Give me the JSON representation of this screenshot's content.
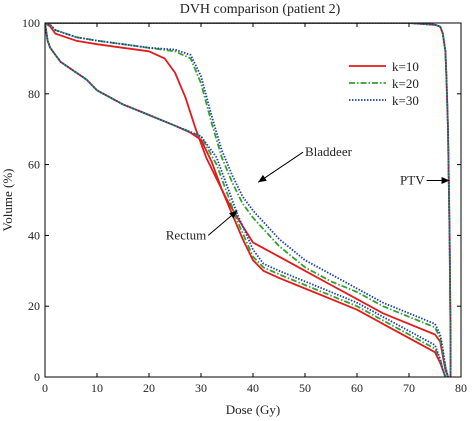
{
  "chart_data": {
    "type": "line",
    "title": "DVH comparison (patient 2)",
    "xlabel": "Dose (Gy)",
    "ylabel": "Volume (%)",
    "xlim": [
      0,
      80
    ],
    "ylim": [
      0,
      100
    ],
    "xticks": [
      0,
      10,
      20,
      30,
      40,
      50,
      60,
      70,
      80
    ],
    "yticks": [
      0,
      20,
      40,
      60,
      80,
      100
    ],
    "grid": false,
    "legend_position": "top-right",
    "series": [
      {
        "name": "k=10",
        "color": "#e31a1c",
        "dash": "solid",
        "curves": [
          {
            "x": [
              0,
              1,
              2,
              4,
              6,
              8,
              10,
              15,
              20,
              23,
              25,
              27,
              29,
              31,
              33,
              35,
              37,
              40,
              45,
              50,
              55,
              60,
              65,
              70,
              75,
              76,
              76.5,
              77,
              77.5
            ],
            "y": [
              100,
              99,
              97,
              96,
              95,
              94.5,
              94,
              93,
              92,
              90,
              86,
              79,
              70,
              62,
              56,
              50,
              45,
              38,
              34,
              30,
              26,
              22,
              18,
              15,
              12,
              10,
              6,
              2,
              0
            ]
          },
          {
            "x": [
              0,
              0.5,
              1,
              2,
              3,
              5,
              8,
              10,
              15,
              20,
              25,
              28,
              30,
              32,
              34,
              36,
              38,
              40,
              42,
              45,
              50,
              55,
              60,
              65,
              70,
              75,
              76,
              76.5,
              77
            ],
            "y": [
              100,
              95,
              93,
              91,
              89,
              87,
              84,
              81,
              77,
              74,
              71,
              69,
              67,
              61,
              53,
              46,
              39,
              33,
              30,
              28,
              25,
              22,
              19,
              15,
              11,
              7,
              4,
              2,
              0
            ]
          },
          {
            "x": [
              0,
              30,
              60,
              70,
              75,
              76,
              76.5,
              77,
              77.2,
              77.5,
              77.8,
              78,
              78
            ],
            "y": [
              100,
              100,
              100,
              100,
              99.5,
              99,
              97,
              92,
              85,
              70,
              40,
              10,
              0
            ]
          }
        ]
      },
      {
        "name": "k=20",
        "color": "#33a02c",
        "dash": "dashdot",
        "curves": [
          {
            "x": [
              0,
              1,
              2,
              4,
              6,
              8,
              10,
              15,
              20,
              25,
              28,
              30,
              32,
              34,
              36,
              38,
              40,
              45,
              50,
              55,
              60,
              65,
              70,
              75,
              76,
              76.5,
              77,
              77.5
            ],
            "y": [
              100,
              99.5,
              98,
              97,
              96,
              95.5,
              95,
              94,
              93,
              92,
              90,
              83,
              72,
              62,
              55,
              49,
              45,
              37,
              31,
              27,
              24,
              20,
              17,
              14,
              11,
              7,
              3,
              0
            ]
          },
          {
            "x": [
              0,
              0.5,
              1,
              2,
              3,
              5,
              8,
              10,
              15,
              20,
              25,
              30,
              33,
              35,
              37,
              40,
              42,
              45,
              50,
              55,
              60,
              65,
              70,
              75,
              76,
              76.5,
              77
            ],
            "y": [
              100,
              95,
              93,
              91,
              89,
              87,
              84,
              81,
              77,
              74,
              71,
              68,
              60,
              52,
              44,
              34,
              31,
              29,
              26,
              23,
              20,
              16,
              12,
              8,
              5,
              2,
              0
            ]
          },
          {
            "x": [
              0,
              30,
              60,
              70,
              75,
              76,
              76.5,
              77,
              77.2,
              77.5,
              77.8,
              78,
              78
            ],
            "y": [
              100,
              100,
              100,
              100,
              99.5,
              99,
              97,
              92,
              85,
              70,
              40,
              10,
              0
            ]
          }
        ]
      },
      {
        "name": "k=30",
        "color": "#1f3fb4",
        "dash": "dotted",
        "curves": [
          {
            "x": [
              0,
              1,
              2,
              4,
              6,
              8,
              10,
              15,
              20,
              25,
              28,
              30,
              32,
              34,
              36,
              38,
              40,
              45,
              50,
              55,
              60,
              65,
              70,
              75,
              76,
              76.5,
              77,
              77.5
            ],
            "y": [
              100,
              99.5,
              98,
              97,
              96,
              95.5,
              95,
              94,
              93,
              92.5,
              91,
              85,
              74,
              64,
              57,
              51,
              47,
              39,
              33,
              29,
              25,
              21,
              18,
              15,
              12,
              8,
              3,
              0
            ]
          },
          {
            "x": [
              0,
              0.5,
              1,
              2,
              3,
              5,
              8,
              10,
              15,
              20,
              25,
              30,
              33,
              35,
              37,
              40,
              42,
              45,
              50,
              55,
              60,
              65,
              70,
              75,
              76,
              76.5,
              77
            ],
            "y": [
              100,
              95,
              93,
              91,
              89,
              87,
              84,
              81,
              77,
              74,
              71,
              68,
              62,
              54,
              46,
              36,
              32,
              30,
              27,
              24,
              21,
              17,
              13,
              9,
              5,
              2,
              0
            ]
          },
          {
            "x": [
              0,
              30,
              60,
              70,
              75,
              76,
              76.5,
              77,
              77.2,
              77.5,
              77.8,
              78,
              78
            ],
            "y": [
              100,
              100,
              100,
              100,
              99.5,
              99,
              97,
              92,
              85,
              70,
              40,
              10,
              0
            ]
          }
        ]
      }
    ],
    "annotations": [
      {
        "text": "Bladdeer",
        "x": 50,
        "y": 63.5,
        "arrow_to_x": 41,
        "arrow_to_y": 55
      },
      {
        "text": "Rectum",
        "x": 31,
        "y": 40,
        "arrow_to_x": 37,
        "arrow_to_y": 47
      },
      {
        "text": "PTV",
        "x": 73,
        "y": 55.5,
        "arrow_to_x": 77.8,
        "arrow_to_y": 55.5
      }
    ]
  }
}
